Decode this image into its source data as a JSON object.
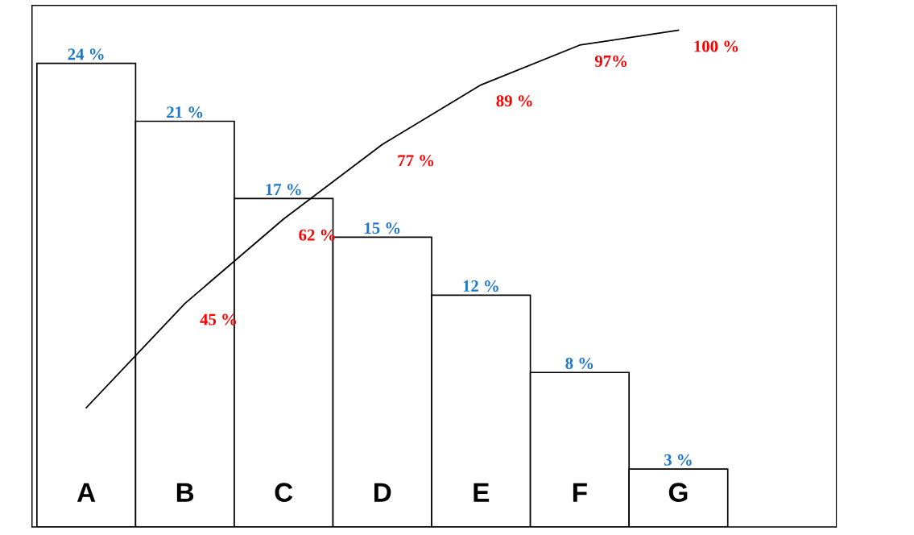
{
  "chart_data": {
    "type": "bar",
    "categories": [
      "A",
      "B",
      "C",
      "D",
      "E",
      "F",
      "G"
    ],
    "ylim": [
      0,
      27
    ],
    "y2lim": [
      0,
      105
    ],
    "tick_labels": "x",
    "grid": false,
    "legend": false,
    "series": [
      {
        "color": "#ffffff",
        "values": [
          24,
          21,
          17,
          15,
          12,
          8,
          3
        ],
        "value_labels": [
          "24 %",
          "21 %",
          "17 %",
          "15 %",
          "12 %",
          "8 %",
          "3 %"
        ]
      },
      {
        "type": "line",
        "axis": "y2",
        "color": "#000000",
        "values": [
          24,
          45,
          62,
          77,
          89,
          97,
          100
        ],
        "value_labels": [
          null,
          "45 %",
          "62 %",
          "77 %",
          "89 %",
          "97%",
          "100 %"
        ]
      }
    ]
  }
}
